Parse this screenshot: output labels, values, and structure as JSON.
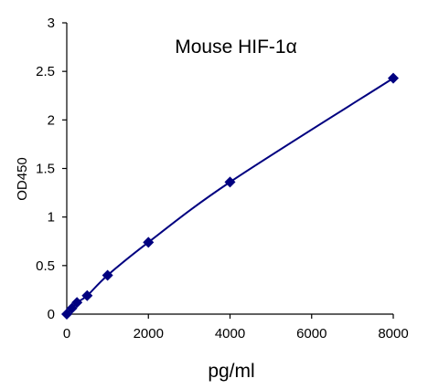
{
  "chart_data": {
    "type": "scatter",
    "title": "Mouse  HIF-1α",
    "xlabel": "pg/ml",
    "ylabel": "OD450",
    "xlim": [
      0,
      8000
    ],
    "ylim": [
      0,
      3
    ],
    "x_ticks": [
      0,
      2000,
      4000,
      6000,
      8000
    ],
    "y_ticks": [
      0,
      0.5,
      1,
      1.5,
      2,
      2.5,
      3
    ],
    "x_tick_labels": [
      "0",
      "2000",
      "4000",
      "6000",
      "8000"
    ],
    "y_tick_labels": [
      "0",
      "0.5",
      "1",
      "1.5",
      "2",
      "2.5",
      "3"
    ],
    "grid": false,
    "legend": "none",
    "series": [
      {
        "marker": "diamond",
        "trendline": "smooth curve",
        "color": "#000080",
        "x": [
          0,
          125,
          250,
          500,
          1000,
          2000,
          4000,
          8000
        ],
        "y": [
          0.0,
          0.06,
          0.12,
          0.19,
          0.4,
          0.74,
          1.36,
          2.43
        ]
      }
    ]
  }
}
